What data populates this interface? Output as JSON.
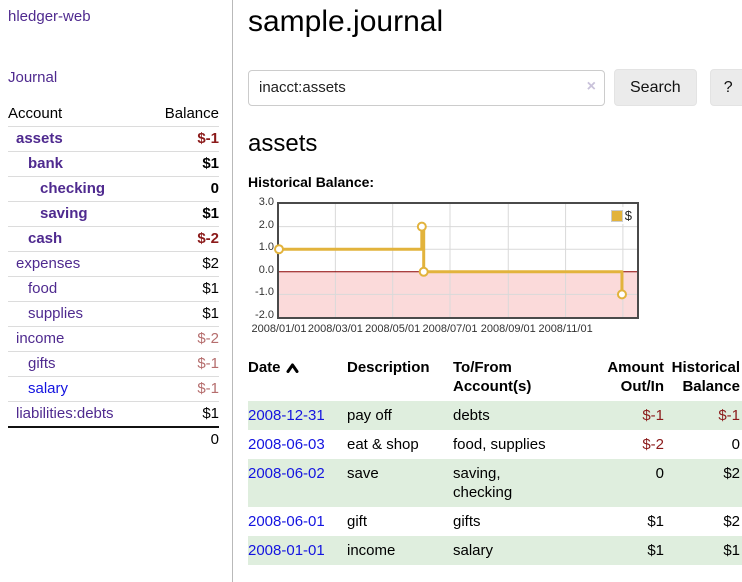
{
  "colors": {
    "link-purple": "#4f2a8f",
    "link-blue": "#1414e0",
    "negative-dark": "#8b1a1a",
    "negative-light": "#b56d6d",
    "row-green": "#dfeede",
    "accent-gold": "#e2b33c",
    "chart-pink": "#fbdada",
    "zero-red": "#8b0000",
    "grid-gray": "#d9d9d9",
    "chart-border": "#4a4a4a",
    "button-bg": "#ebebeb",
    "divider": "#b9b9b9",
    "row-line": "#dcdcdc"
  },
  "app": {
    "title": "hledger-web"
  },
  "sidebar": {
    "journal_link": "Journal",
    "table": {
      "headers": {
        "account": "Account",
        "balance": "Balance"
      },
      "rows": [
        {
          "account": "assets",
          "balance": "$-1"
        },
        {
          "account": "bank",
          "balance": "$1"
        },
        {
          "account": "checking",
          "balance": "0"
        },
        {
          "account": "saving",
          "balance": "$1"
        },
        {
          "account": "cash",
          "balance": "$-2"
        },
        {
          "account": "expenses",
          "balance": "$2"
        },
        {
          "account": "food",
          "balance": "$1"
        },
        {
          "account": "supplies",
          "balance": "$1"
        },
        {
          "account": "income",
          "balance": "$-2"
        },
        {
          "account": "gifts",
          "balance": "$-1"
        },
        {
          "account": "salary",
          "balance": "$-1"
        },
        {
          "account": "liabilities:debts",
          "balance": "$1"
        }
      ],
      "total": "0"
    }
  },
  "main": {
    "title": "sample.journal",
    "search": {
      "value": "inacct:assets",
      "clear_icon": "×",
      "button_label": "Search",
      "help_label": "?"
    },
    "account_heading": "assets",
    "section_label": "Historical Balance:"
  },
  "chart_data": {
    "type": "line",
    "step": true,
    "title": "Historical Balance:",
    "legend": {
      "label": "$",
      "position": "top-right"
    },
    "ylim": [
      -2.0,
      3.0
    ],
    "x_start": "2008-01-01",
    "x_end": "2009-01-16",
    "y_ticks": [
      {
        "label": "3.0",
        "value": 3
      },
      {
        "label": "2.0",
        "value": 2
      },
      {
        "label": "1.0",
        "value": 1
      },
      {
        "label": "0.0",
        "value": 0
      },
      {
        "label": "-1.0",
        "value": -1
      },
      {
        "label": "-2.0",
        "value": -2
      }
    ],
    "x_ticks": [
      {
        "label": "2008/01/01",
        "date": "2008-01-01"
      },
      {
        "label": "2008/03/01",
        "date": "2008-03-01"
      },
      {
        "label": "2008/05/01",
        "date": "2008-05-01"
      },
      {
        "label": "2008/07/01",
        "date": "2008-07-01"
      },
      {
        "label": "2008/09/01",
        "date": "2008-09-01"
      },
      {
        "label": "2008/11/01",
        "date": "2008-11-01"
      },
      {
        "label": "",
        "date": "2009-01-01"
      }
    ],
    "series": [
      {
        "name": "$",
        "color": "#e2b33c",
        "points": [
          [
            "2008-01-01",
            1.0
          ],
          [
            "2008-06-01",
            2.0
          ],
          [
            "2008-06-03",
            0.0
          ],
          [
            "2008-12-31",
            -1.0
          ]
        ]
      }
    ],
    "negative_region_color": "#fbdada",
    "zero_line_color": "#8b0000",
    "grid": true
  },
  "register": {
    "headers": {
      "date": "Date",
      "description": "Description",
      "account": "To/From\nAccount(s)",
      "amount": "Amount\nOut/In",
      "balance": "Historical\nBalance"
    },
    "rows": [
      {
        "date": "2008-12-31",
        "description": "pay off",
        "account": "debts",
        "amount": "$-1",
        "balance": "$-1"
      },
      {
        "date": "2008-06-03",
        "description": "eat & shop",
        "account": "food, supplies",
        "amount": "$-2",
        "balance": "0"
      },
      {
        "date": "2008-06-02",
        "description": "save",
        "account": "saving,\nchecking",
        "amount": "0",
        "balance": "$2"
      },
      {
        "date": "2008-06-01",
        "description": "gift",
        "account": "gifts",
        "amount": "$1",
        "balance": "$2"
      },
      {
        "date": "2008-01-01",
        "description": "income",
        "account": "salary",
        "amount": "$1",
        "balance": "$1"
      }
    ]
  }
}
